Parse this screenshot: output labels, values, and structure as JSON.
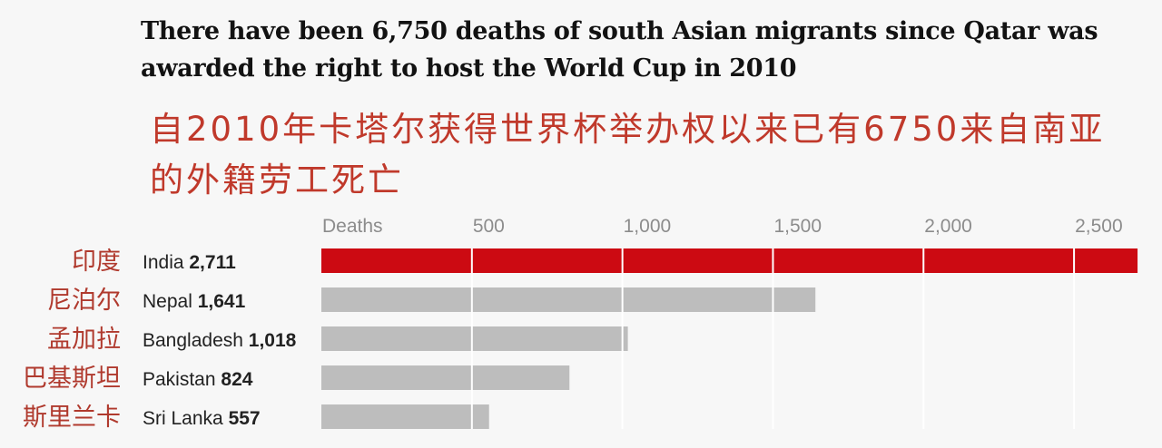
{
  "title": "There have been 6,750 deaths of south Asian migrants since Qatar was awarded the right to host the World Cup in 2010",
  "subtitle_zh": "自2010年卡塔尔获得世界杯举办权以来已有6750来自南亚的外籍劳工死亡",
  "colors": {
    "highlight": "#cc0a12",
    "bar": "#bdbdbd",
    "grid": "#ffffff"
  },
  "chart_data": {
    "type": "bar",
    "orientation": "horizontal",
    "xlabel": "Deaths",
    "xlim": [
      0,
      2750
    ],
    "ticks": [
      {
        "value": 0,
        "label": "Deaths"
      },
      {
        "value": 500,
        "label": "500"
      },
      {
        "value": 1000,
        "label": "1,000"
      },
      {
        "value": 1500,
        "label": "1,500"
      },
      {
        "value": 2000,
        "label": "2,000"
      },
      {
        "value": 2500,
        "label": "2,500"
      }
    ],
    "categories": [
      {
        "zh": "印度",
        "name": "India",
        "value_label": "2,711",
        "value": 2711,
        "highlight": true
      },
      {
        "zh": "尼泊尔",
        "name": "Nepal",
        "value_label": "1,641",
        "value": 1641,
        "highlight": false
      },
      {
        "zh": "孟加拉",
        "name": "Bangladesh",
        "value_label": "1,018",
        "value": 1018,
        "highlight": false
      },
      {
        "zh": "巴基斯坦",
        "name": "Pakistan",
        "value_label": "824",
        "value": 824,
        "highlight": false
      },
      {
        "zh": "斯里兰卡",
        "name": "Sri Lanka",
        "value_label": "557",
        "value": 557,
        "highlight": false
      }
    ]
  }
}
